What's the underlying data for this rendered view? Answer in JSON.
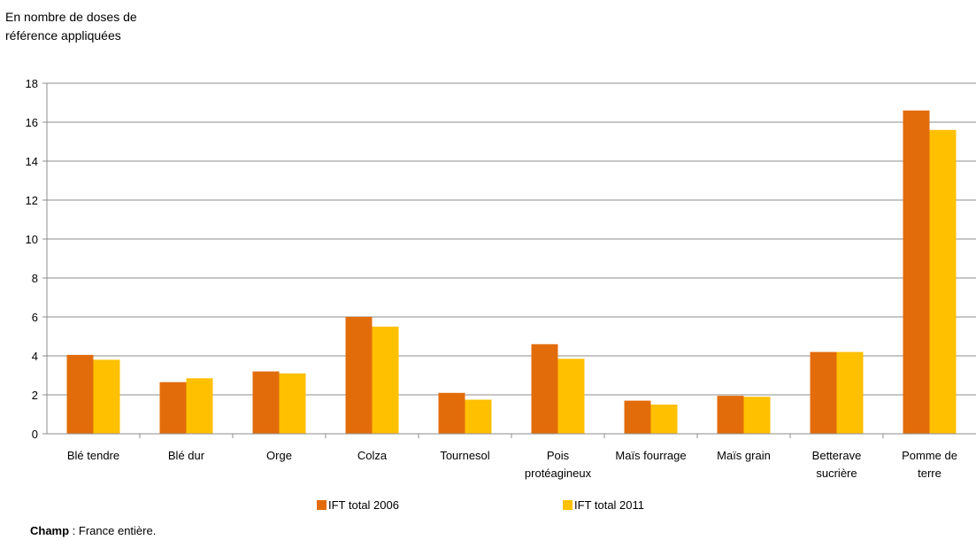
{
  "chart_data": {
    "type": "bar",
    "ylabel": "En nombre de doses de référence appliquées",
    "ylabel_lines": [
      "En nombre de doses de",
      "référence appliquées"
    ],
    "ylim": [
      0,
      18
    ],
    "yticks": [
      0,
      2,
      4,
      6,
      8,
      10,
      12,
      14,
      16,
      18
    ],
    "grid": true,
    "legend_position": "bottom",
    "categories": [
      [
        "Blé tendre"
      ],
      [
        "Blé dur"
      ],
      [
        "Orge"
      ],
      [
        "Colza"
      ],
      [
        "Tournesol"
      ],
      [
        "Pois",
        "protéagineux"
      ],
      [
        "Maïs fourrage"
      ],
      [
        "Maïs grain"
      ],
      [
        "Betterave",
        "sucrière"
      ],
      [
        "Pomme de",
        "terre"
      ]
    ],
    "series": [
      {
        "name": "IFT total 2006",
        "color": "#E36C0A",
        "values": [
          4.05,
          2.65,
          3.2,
          6.0,
          2.1,
          4.6,
          1.7,
          1.95,
          4.2,
          16.6
        ]
      },
      {
        "name": "IFT total 2011",
        "color": "#FFC000",
        "values": [
          3.8,
          2.85,
          3.1,
          5.5,
          1.75,
          3.85,
          1.5,
          1.9,
          4.2,
          15.6
        ]
      }
    ]
  },
  "footnote": {
    "label": "Champ",
    "text": " : France entière."
  }
}
